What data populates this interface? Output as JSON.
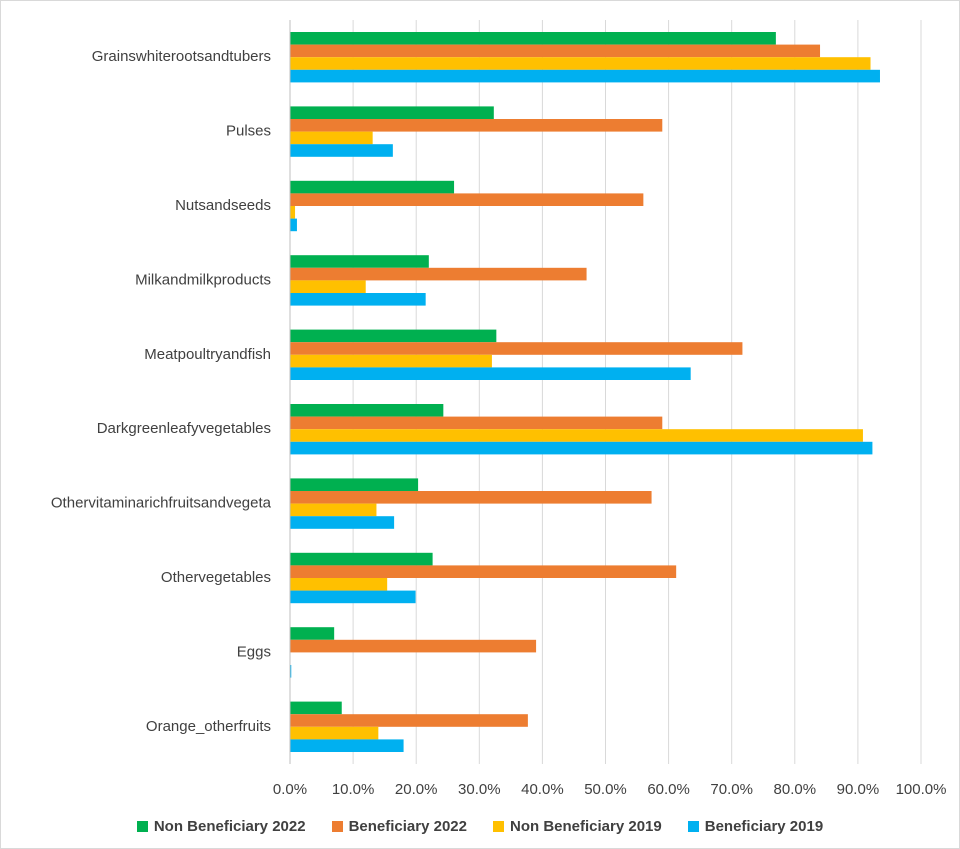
{
  "chart_data": {
    "type": "bar",
    "orientation": "horizontal",
    "categories": [
      "Grainswhiterootsandtubers",
      "Pulses",
      "Nutsandseeds",
      "Milkandmilkproducts",
      "Meatpoultryandfish",
      "Darkgreenleafyvegetables",
      "Othervitaminarichfruitsandvegeta",
      "Othervegetables",
      "Eggs",
      "Orange_otherfruits"
    ],
    "series": [
      {
        "name": "Non Beneficiary 2022",
        "color": "#00b050",
        "values": [
          77.0,
          32.3,
          26.0,
          22.0,
          32.7,
          24.3,
          20.3,
          22.6,
          7.0,
          8.2
        ]
      },
      {
        "name": "Beneficiary 2022",
        "color": "#ed7d31",
        "values": [
          84.0,
          59.0,
          56.0,
          47.0,
          71.7,
          59.0,
          57.3,
          61.2,
          39.0,
          37.7
        ]
      },
      {
        "name": "Non Beneficiary 2019",
        "color": "#ffc000",
        "values": [
          92.0,
          13.1,
          0.8,
          12.0,
          32.0,
          90.8,
          13.7,
          15.4,
          0.0,
          14.0
        ]
      },
      {
        "name": "Beneficiary 2019",
        "color": "#00b0f0",
        "values": [
          93.5,
          16.3,
          1.1,
          21.5,
          63.5,
          92.3,
          16.5,
          19.9,
          0.2,
          18.0
        ]
      }
    ],
    "x_ticks": [
      "0.0%",
      "10.0%",
      "20.0%",
      "30.0%",
      "40.0%",
      "50.0%",
      "60.0%",
      "70.0%",
      "80.0%",
      "90.0%",
      "100.0%"
    ],
    "xlim": [
      0,
      100
    ],
    "grid": true,
    "legend_position": "bottom"
  }
}
